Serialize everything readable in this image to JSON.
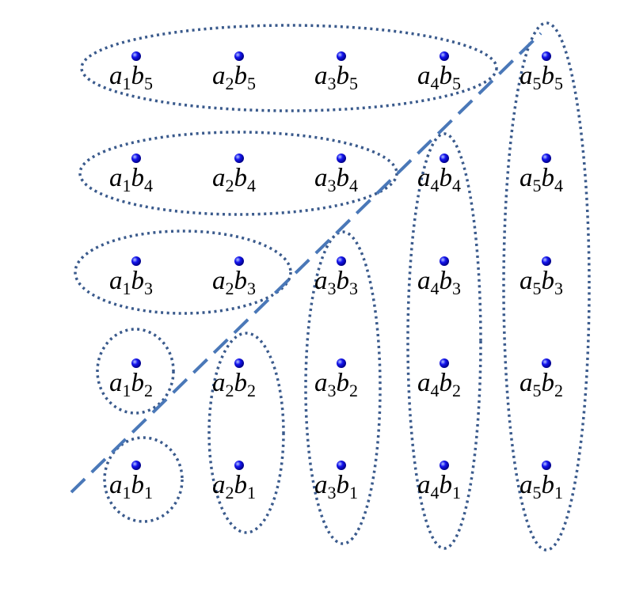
{
  "colors": {
    "dot": "#1414ee",
    "group_outline": "#3a5a8c",
    "diagonal": "#4a78b8"
  },
  "points": [
    {
      "id": "a1b1",
      "base1": "a",
      "sub1": "1",
      "base2": "b",
      "sub2": "1"
    },
    {
      "id": "a2b1",
      "base1": "a",
      "sub1": "2",
      "base2": "b",
      "sub2": "1"
    },
    {
      "id": "a3b1",
      "base1": "a",
      "sub1": "3",
      "base2": "b",
      "sub2": "1"
    },
    {
      "id": "a4b1",
      "base1": "a",
      "sub1": "4",
      "base2": "b",
      "sub2": "1"
    },
    {
      "id": "a5b1",
      "base1": "a",
      "sub1": "5",
      "base2": "b",
      "sub2": "1"
    },
    {
      "id": "a1b2",
      "base1": "a",
      "sub1": "1",
      "base2": "b",
      "sub2": "2"
    },
    {
      "id": "a2b2",
      "base1": "a",
      "sub1": "2",
      "base2": "b",
      "sub2": "2"
    },
    {
      "id": "a3b2",
      "base1": "a",
      "sub1": "3",
      "base2": "b",
      "sub2": "2"
    },
    {
      "id": "a4b2",
      "base1": "a",
      "sub1": "4",
      "base2": "b",
      "sub2": "2"
    },
    {
      "id": "a5b2",
      "base1": "a",
      "sub1": "5",
      "base2": "b",
      "sub2": "2"
    },
    {
      "id": "a1b3",
      "base1": "a",
      "sub1": "1",
      "base2": "b",
      "sub2": "3"
    },
    {
      "id": "a2b3",
      "base1": "a",
      "sub1": "2",
      "base2": "b",
      "sub2": "3"
    },
    {
      "id": "a3b3",
      "base1": "a",
      "sub1": "3",
      "base2": "b",
      "sub2": "3"
    },
    {
      "id": "a4b3",
      "base1": "a",
      "sub1": "4",
      "base2": "b",
      "sub2": "3"
    },
    {
      "id": "a5b3",
      "base1": "a",
      "sub1": "5",
      "base2": "b",
      "sub2": "3"
    },
    {
      "id": "a1b4",
      "base1": "a",
      "sub1": "1",
      "base2": "b",
      "sub2": "4"
    },
    {
      "id": "a2b4",
      "base1": "a",
      "sub1": "2",
      "base2": "b",
      "sub2": "4"
    },
    {
      "id": "a3b4",
      "base1": "a",
      "sub1": "3",
      "base2": "b",
      "sub2": "4"
    },
    {
      "id": "a4b4",
      "base1": "a",
      "sub1": "4",
      "base2": "b",
      "sub2": "4"
    },
    {
      "id": "a5b4",
      "base1": "a",
      "sub1": "5",
      "base2": "b",
      "sub2": "4"
    },
    {
      "id": "a1b5",
      "base1": "a",
      "sub1": "1",
      "base2": "b",
      "sub2": "5"
    },
    {
      "id": "a2b5",
      "base1": "a",
      "sub1": "2",
      "base2": "b",
      "sub2": "5"
    },
    {
      "id": "a3b5",
      "base1": "a",
      "sub1": "3",
      "base2": "b",
      "sub2": "5"
    },
    {
      "id": "a4b5",
      "base1": "a",
      "sub1": "4",
      "base2": "b",
      "sub2": "5"
    },
    {
      "id": "a5b5",
      "base1": "a",
      "sub1": "5",
      "base2": "b",
      "sub2": "5"
    }
  ],
  "groups": [
    {
      "members": [
        "a1b1"
      ]
    },
    {
      "members": [
        "a1b2"
      ]
    },
    {
      "members": [
        "a2b1",
        "a2b2"
      ]
    },
    {
      "members": [
        "a1b3",
        "a2b3"
      ]
    },
    {
      "members": [
        "a3b1",
        "a3b2",
        "a3b3"
      ]
    },
    {
      "members": [
        "a1b4",
        "a2b4",
        "a3b4"
      ]
    },
    {
      "members": [
        "a4b1",
        "a4b2",
        "a4b3",
        "a4b4"
      ]
    },
    {
      "members": [
        "a1b5",
        "a2b5",
        "a3b5",
        "a4b5"
      ]
    },
    {
      "members": [
        "a5b1",
        "a5b2",
        "a5b3",
        "a5b4",
        "a5b5"
      ]
    }
  ]
}
